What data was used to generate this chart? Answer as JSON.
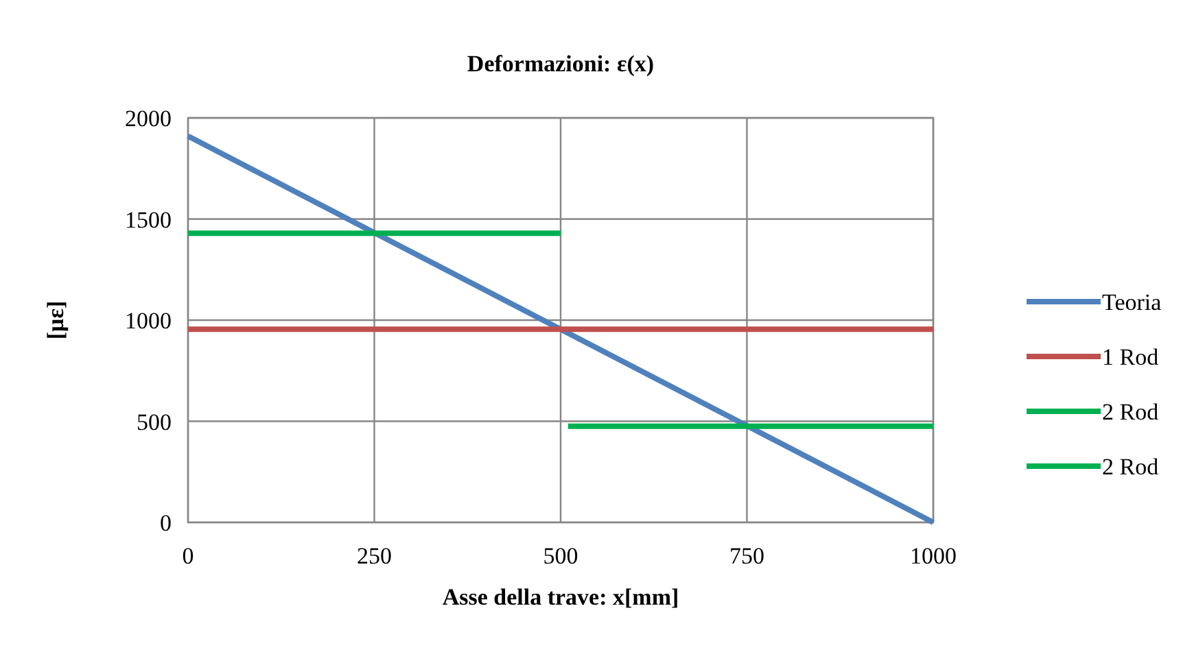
{
  "chart_data": {
    "type": "line",
    "title": "Deformazioni: ε(x)",
    "xlabel": "Asse della trave: x[mm]",
    "ylabel": "[με]",
    "xlim": [
      0,
      1000
    ],
    "xticks": [
      0,
      250,
      500,
      750,
      1000
    ],
    "ylim": [
      0,
      2000
    ],
    "yticks": [
      0,
      500,
      1000,
      1500,
      2000
    ],
    "grid": true,
    "legend": "right",
    "marker": "none",
    "line_style": "solid",
    "series": [
      {
        "name": "Teoria",
        "color": "#4f81bd",
        "x": [
          0,
          1000
        ],
        "values": [
          1910,
          0
        ]
      },
      {
        "name": "1 Rod",
        "color": "#c0504d",
        "x": [
          0,
          1000
        ],
        "values": [
          955,
          955
        ]
      },
      {
        "name": "2 Rod",
        "color": "#00b050",
        "x": [
          0,
          500
        ],
        "values": [
          1430,
          1430
        ]
      },
      {
        "name": "2 Rod",
        "color": "#00b050",
        "x": [
          510,
          1000
        ],
        "values": [
          475,
          475
        ]
      }
    ]
  }
}
